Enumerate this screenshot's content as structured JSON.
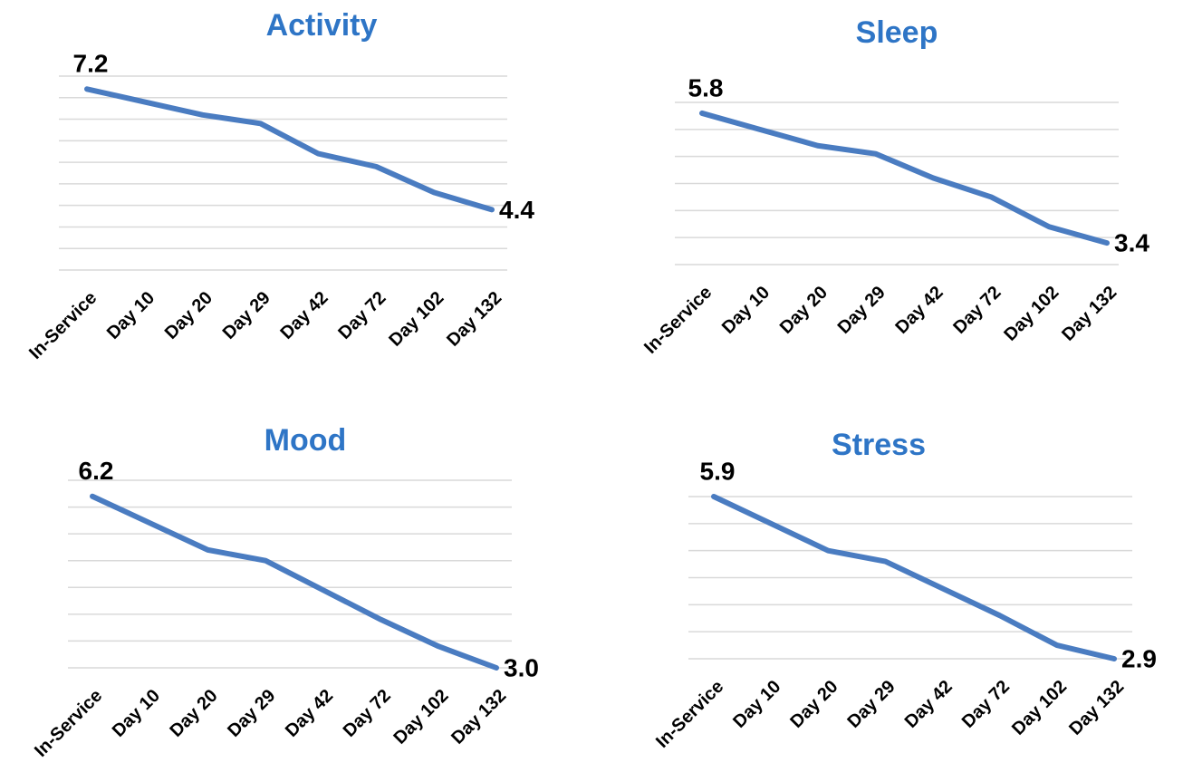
{
  "chart_data": [
    {
      "type": "line",
      "title": "Activity",
      "categories": [
        "In-Service",
        "Day 10",
        "Day 20",
        "Day 29",
        "Day 42",
        "Day 72",
        "Day 102",
        "Day 132"
      ],
      "values": [
        7.2,
        6.9,
        6.6,
        6.4,
        5.7,
        5.4,
        4.8,
        4.4
      ],
      "value_labels": [
        "7.2",
        null,
        null,
        null,
        null,
        null,
        null,
        "4.4"
      ],
      "color": "#4a7cc1",
      "ylim": [
        3,
        7.5
      ],
      "yticks": [
        3,
        3.5,
        4,
        4.5,
        5,
        5.5,
        6,
        6.5,
        7,
        7.5
      ],
      "grid": true
    },
    {
      "type": "line",
      "title": "Sleep",
      "categories": [
        "In-Service",
        "Day 10",
        "Day 20",
        "Day 29",
        "Day 42",
        "Day 72",
        "Day 102",
        "Day 132"
      ],
      "values": [
        5.8,
        5.5,
        5.2,
        5.05,
        4.6,
        4.25,
        3.7,
        3.4
      ],
      "value_labels": [
        "5.8",
        null,
        null,
        null,
        null,
        null,
        null,
        "3.4"
      ],
      "color": "#4a7cc1",
      "ylim": [
        3,
        6
      ],
      "yticks": [
        3,
        3.5,
        4,
        4.5,
        5,
        5.5,
        6
      ],
      "grid": true
    },
    {
      "type": "line",
      "title": "Mood",
      "categories": [
        "In-Service",
        "Day 10",
        "Day 20",
        "Day 29",
        "Day 42",
        "Day 72",
        "Day 102",
        "Day 132"
      ],
      "values": [
        6.2,
        5.7,
        5.2,
        5.0,
        4.45,
        3.9,
        3.4,
        3.0
      ],
      "value_labels": [
        "6.2",
        null,
        null,
        null,
        null,
        null,
        null,
        "3.0"
      ],
      "color": "#4a7cc1",
      "ylim": [
        3,
        6.5
      ],
      "yticks": [
        3,
        3.5,
        4,
        4.5,
        5,
        5.5,
        6,
        6.5
      ],
      "grid": true
    },
    {
      "type": "line",
      "title": "Stress",
      "categories": [
        "In-Service",
        "Day 10",
        "Day 20",
        "Day 29",
        "Day 42",
        "Day 72",
        "Day 102",
        "Day 132"
      ],
      "values": [
        5.9,
        5.4,
        4.9,
        4.7,
        4.2,
        3.7,
        3.15,
        2.9
      ],
      "value_labels": [
        "5.9",
        null,
        null,
        null,
        null,
        null,
        null,
        "2.9"
      ],
      "color": "#4a7cc1",
      "ylim": [
        2.9,
        5.9
      ],
      "yticks": [
        2.9,
        3.4,
        3.9,
        4.4,
        4.9,
        5.4,
        5.9
      ],
      "grid": true
    }
  ]
}
